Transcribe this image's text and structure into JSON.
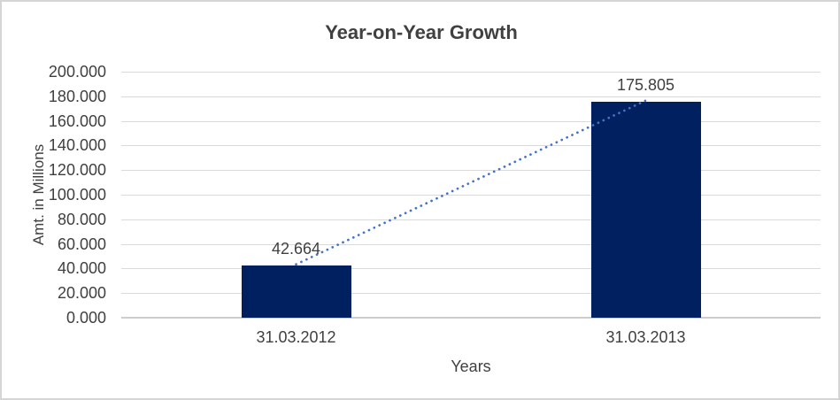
{
  "chart_data": {
    "type": "bar",
    "title": "Year-on-Year Growth",
    "categories": [
      "31.03.2012",
      "31.03.2013"
    ],
    "values": [
      42.664,
      175.805
    ],
    "data_labels": [
      "42.664",
      "175.805"
    ],
    "xlabel": "Years",
    "ylabel": "Amt. in Millions",
    "ylim": [
      0,
      200
    ],
    "ytick_interval": 20,
    "ytick_labels": [
      "0.000",
      "20.000",
      "40.000",
      "60.000",
      "80.000",
      "100.000",
      "120.000",
      "140.000",
      "160.000",
      "180.000",
      "200.000"
    ],
    "grid": true,
    "legend": false,
    "trendline": {
      "type": "linear",
      "style": "dotted",
      "from_category": "31.03.2012",
      "to_category": "31.03.2013"
    },
    "colors": {
      "bar": "#002060",
      "trendline": "#4472C4",
      "gridline": "#DADADA",
      "axis_line": "#CDCDCD",
      "text": "#404040",
      "background": "#FFFFFF",
      "border": "#D5D5D5"
    }
  }
}
